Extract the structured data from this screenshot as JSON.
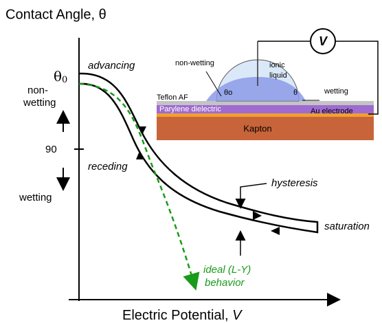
{
  "y_axis": {
    "title": "Contact Angle, θ",
    "theta0_symbol": "θ",
    "theta0_sub": "0",
    "nonwetting_1": "non-",
    "nonwetting_2": "wetting",
    "ninety": "90",
    "wetting": "wetting"
  },
  "x_axis": {
    "title": "Electric Potential,",
    "variable": "V"
  },
  "curves": {
    "advancing": "advancing",
    "receding": "receding",
    "hysteresis": "hysteresis",
    "saturation": "saturation",
    "ideal_1": "ideal (L-Y)",
    "ideal_2": "behavior"
  },
  "inset": {
    "voltage": "V",
    "non_wetting": "non-wetting",
    "liquid_1": "ionic",
    "liquid_2": "liquid",
    "theta_o": "θo",
    "theta": "θ",
    "wetting": "wetting",
    "teflon": "Teflon AF",
    "parylene": "Parylene dielectric",
    "electrode": "Au electrode",
    "kapton": "Kapton"
  }
}
